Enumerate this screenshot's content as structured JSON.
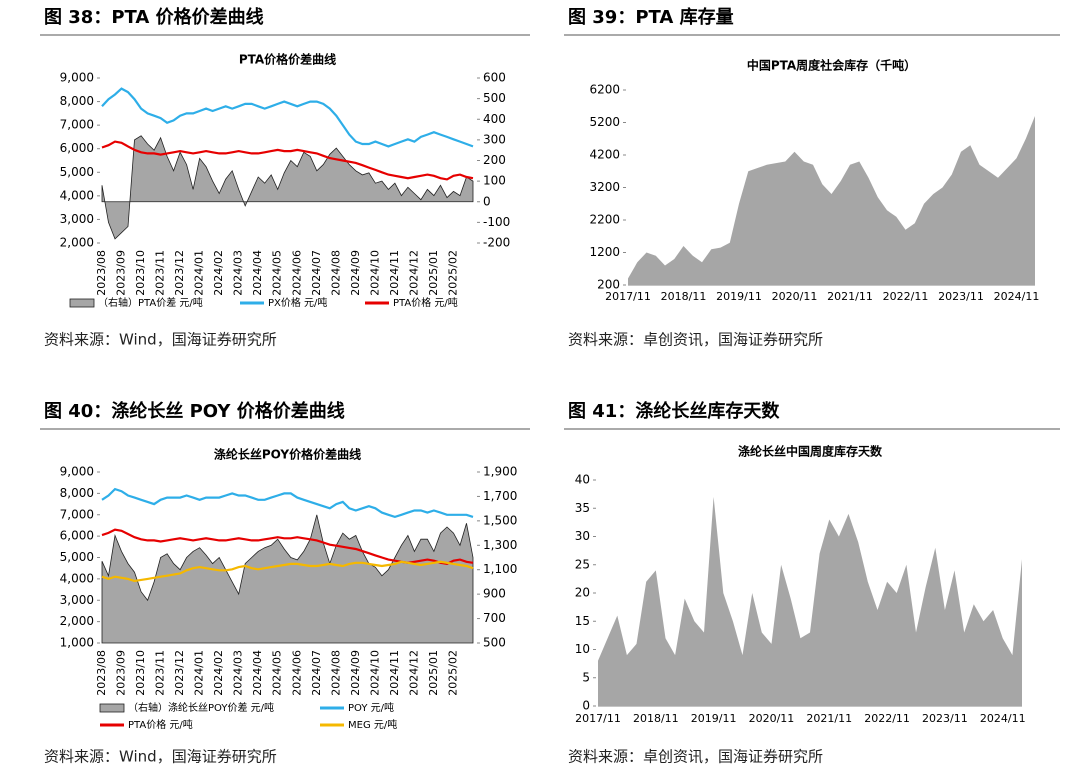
{
  "chart_data": [
    {
      "type": "combo",
      "caption": "图 38：PTA 价格价差曲线",
      "title": "PTA价格价差曲线",
      "source": "资料来源：Wind，国海证券研究所",
      "categories": [
        "2023/08",
        null,
        null,
        "2023/09",
        null,
        null,
        "2023/10",
        null,
        null,
        "2023/11",
        null,
        null,
        "2023/12",
        null,
        null,
        "2024/01",
        null,
        null,
        "2024/02",
        null,
        null,
        "2024/03",
        null,
        null,
        "2024/04",
        null,
        null,
        "2024/05",
        null,
        null,
        "2024/06",
        null,
        null,
        "2024/07",
        null,
        null,
        "2024/08",
        null,
        null,
        "2024/09",
        null,
        null,
        "2024/10",
        null,
        null,
        "2024/11",
        null,
        null,
        "2024/12",
        null,
        null,
        "2025/01",
        null,
        null,
        "2025/02",
        null,
        null,
        null
      ],
      "ylim": [
        2000,
        9000
      ],
      "yticks": [
        {
          "value": 2000,
          "label": "2,000"
        },
        {
          "value": 3000,
          "label": "3,000"
        },
        {
          "value": 4000,
          "label": "4,000"
        },
        {
          "value": 5000,
          "label": "5,000"
        },
        {
          "value": 6000,
          "label": "6,000"
        },
        {
          "value": 7000,
          "label": "7,000"
        },
        {
          "value": 8000,
          "label": "8,000"
        },
        {
          "value": 9000,
          "label": "9,000"
        }
      ],
      "y2lim": [
        -200,
        600
      ],
      "y2ticks": [
        -200,
        -100,
        0,
        100,
        200,
        300,
        400,
        500,
        600
      ],
      "series": [
        {
          "name": "（右轴）PTA价差 元/吨",
          "kind": "area",
          "axis": "y2",
          "color": "#a6a6a6",
          "values": [
            80,
            -100,
            -180,
            -150,
            -120,
            300,
            320,
            280,
            250,
            310,
            220,
            150,
            240,
            180,
            60,
            210,
            170,
            100,
            40,
            110,
            150,
            60,
            -20,
            50,
            120,
            90,
            130,
            60,
            140,
            200,
            170,
            240,
            220,
            150,
            180,
            230,
            260,
            220,
            180,
            150,
            130,
            140,
            90,
            100,
            60,
            90,
            30,
            70,
            40,
            10,
            60,
            30,
            80,
            20,
            50,
            30,
            120,
            100
          ]
        },
        {
          "name": "PX价格 元/吨",
          "kind": "line",
          "color": "#2eaee8",
          "values": [
            7800,
            8100,
            8300,
            8550,
            8400,
            8100,
            7700,
            7500,
            7400,
            7300,
            7100,
            7200,
            7400,
            7500,
            7500,
            7600,
            7700,
            7600,
            7700,
            7800,
            7700,
            7800,
            7900,
            7900,
            7800,
            7700,
            7800,
            7900,
            8000,
            7900,
            7800,
            7900,
            8000,
            8000,
            7900,
            7700,
            7400,
            7000,
            6600,
            6300,
            6200,
            6200,
            6300,
            6200,
            6100,
            6200,
            6300,
            6400,
            6300,
            6500,
            6600,
            6700,
            6600,
            6500,
            6400,
            6300,
            6200,
            6100
          ]
        },
        {
          "name": "PTA价格 元/吨",
          "kind": "line",
          "color": "#e60000",
          "values": [
            6050,
            6150,
            6300,
            6250,
            6100,
            5950,
            5850,
            5800,
            5800,
            5750,
            5800,
            5850,
            5900,
            5850,
            5800,
            5850,
            5900,
            5850,
            5800,
            5800,
            5850,
            5900,
            5850,
            5800,
            5800,
            5850,
            5900,
            5950,
            5900,
            5900,
            5950,
            5900,
            5850,
            5800,
            5700,
            5600,
            5550,
            5500,
            5450,
            5400,
            5300,
            5200,
            5100,
            5000,
            4900,
            4850,
            4800,
            4750,
            4800,
            4850,
            4900,
            4850,
            4750,
            4700,
            4850,
            4900,
            4800,
            4750
          ]
        }
      ]
    },
    {
      "type": "area",
      "caption": "图 39：PTA 库存量",
      "title": "中国PTA周度社会库存（千吨）",
      "source": "资料来源：卓创资讯，国海证券研究所",
      "categories": [
        "2017/11",
        null,
        null,
        null,
        null,
        null,
        "2018/11",
        null,
        null,
        null,
        null,
        null,
        "2019/11",
        null,
        null,
        null,
        null,
        null,
        "2020/11",
        null,
        null,
        null,
        null,
        null,
        "2021/11",
        null,
        null,
        null,
        null,
        null,
        "2022/11",
        null,
        null,
        null,
        null,
        null,
        "2023/11",
        null,
        null,
        null,
        null,
        null,
        "2024/11",
        null,
        null
      ],
      "ylim": [
        200,
        6200
      ],
      "yticks": [
        200,
        1200,
        2200,
        3200,
        4200,
        5200,
        6200
      ],
      "series": [
        {
          "kind": "area",
          "color": "#a6a6a6",
          "values": [
            400,
            900,
            1200,
            1100,
            800,
            1000,
            1400,
            1100,
            900,
            1300,
            1350,
            1500,
            2700,
            3700,
            3800,
            3900,
            3950,
            4000,
            4300,
            4000,
            3900,
            3300,
            3000,
            3400,
            3900,
            4000,
            3500,
            2900,
            2500,
            2300,
            1900,
            2100,
            2700,
            3000,
            3200,
            3600,
            4300,
            4500,
            3900,
            3700,
            3500,
            3800,
            4100,
            4700,
            5400
          ]
        }
      ]
    },
    {
      "type": "combo",
      "caption": "图 40：涤纶长丝 POY 价格价差曲线",
      "title": "涤纶长丝POY价格价差曲线",
      "source": "资料来源：Wind，国海证券研究所",
      "categories": [
        "2023/08",
        null,
        null,
        "2023/09",
        null,
        null,
        "2023/10",
        null,
        null,
        "2023/11",
        null,
        null,
        "2023/12",
        null,
        null,
        "2024/01",
        null,
        null,
        "2024/02",
        null,
        null,
        "2024/03",
        null,
        null,
        "2024/04",
        null,
        null,
        "2024/05",
        null,
        null,
        "2024/06",
        null,
        null,
        "2024/07",
        null,
        null,
        "2024/08",
        null,
        null,
        "2024/09",
        null,
        null,
        "2024/10",
        null,
        null,
        "2024/11",
        null,
        null,
        "2024/12",
        null,
        null,
        "2025/01",
        null,
        null,
        "2025/02",
        null,
        null,
        null
      ],
      "ylim": [
        1000,
        9000
      ],
      "yticks": [
        {
          "value": 1000,
          "label": "1,000"
        },
        {
          "value": 2000,
          "label": "2,000"
        },
        {
          "value": 3000,
          "label": "3,000"
        },
        {
          "value": 4000,
          "label": "4,000"
        },
        {
          "value": 5000,
          "label": "5,000"
        },
        {
          "value": 6000,
          "label": "6,000"
        },
        {
          "value": 7000,
          "label": "7,000"
        },
        {
          "value": 8000,
          "label": "8,000"
        },
        {
          "value": 9000,
          "label": "9,000"
        }
      ],
      "y2lim": [
        500,
        1900
      ],
      "y2ticks": [
        500,
        700,
        900,
        {
          "value": 1100,
          "label": "1,100"
        },
        {
          "value": 1300,
          "label": "1,300"
        },
        {
          "value": 1500,
          "label": "1,500"
        },
        {
          "value": 1700,
          "label": "1,700"
        },
        {
          "value": 1900,
          "label": "1,900"
        }
      ],
      "series": [
        {
          "name": "（右轴）涤纶长丝POY价差 元/吨",
          "kind": "area",
          "axis": "y2",
          "color": "#a6a6a6",
          "values": [
            1170,
            1050,
            1380,
            1250,
            1150,
            1080,
            920,
            850,
            1000,
            1200,
            1230,
            1150,
            1100,
            1200,
            1250,
            1280,
            1220,
            1150,
            1200,
            1100,
            1000,
            900,
            1150,
            1200,
            1250,
            1280,
            1300,
            1350,
            1270,
            1200,
            1180,
            1250,
            1350,
            1550,
            1320,
            1150,
            1300,
            1400,
            1350,
            1380,
            1250,
            1150,
            1120,
            1050,
            1100,
            1200,
            1300,
            1380,
            1250,
            1350,
            1350,
            1250,
            1400,
            1450,
            1400,
            1300,
            1480,
            1200
          ]
        },
        {
          "name": "POY 元/吨",
          "kind": "line",
          "color": "#2eaee8",
          "values": [
            7700,
            7900,
            8200,
            8100,
            7900,
            7800,
            7700,
            7600,
            7500,
            7700,
            7800,
            7800,
            7800,
            7900,
            7800,
            7700,
            7800,
            7800,
            7800,
            7900,
            8000,
            7900,
            7900,
            7800,
            7700,
            7700,
            7800,
            7900,
            8000,
            8000,
            7800,
            7700,
            7600,
            7500,
            7400,
            7300,
            7500,
            7600,
            7300,
            7200,
            7300,
            7400,
            7300,
            7100,
            7000,
            6900,
            7000,
            7100,
            7200,
            7200,
            7100,
            7200,
            7100,
            7000,
            7000,
            7000,
            7000,
            6900
          ]
        },
        {
          "name": "PTA价格 元/吨",
          "kind": "line",
          "color": "#e60000",
          "values": [
            6050,
            6150,
            6300,
            6250,
            6100,
            5950,
            5850,
            5800,
            5800,
            5750,
            5800,
            5850,
            5900,
            5850,
            5800,
            5850,
            5900,
            5850,
            5800,
            5800,
            5850,
            5900,
            5850,
            5800,
            5800,
            5850,
            5900,
            5950,
            5900,
            5900,
            5950,
            5900,
            5850,
            5800,
            5700,
            5600,
            5550,
            5500,
            5450,
            5400,
            5300,
            5200,
            5100,
            5000,
            4900,
            4850,
            4800,
            4750,
            4800,
            4850,
            4900,
            4850,
            4750,
            4700,
            4850,
            4900,
            4800,
            4750
          ]
        },
        {
          "name": "MEG 元/吨",
          "kind": "line",
          "color": "#f5b800",
          "values": [
            4100,
            4000,
            4100,
            4050,
            4000,
            3900,
            3950,
            4000,
            4050,
            4100,
            4150,
            4200,
            4250,
            4400,
            4500,
            4550,
            4500,
            4450,
            4400,
            4400,
            4450,
            4550,
            4600,
            4500,
            4450,
            4500,
            4550,
            4600,
            4650,
            4700,
            4700,
            4650,
            4600,
            4600,
            4650,
            4700,
            4650,
            4600,
            4700,
            4750,
            4750,
            4700,
            4650,
            4600,
            4650,
            4700,
            4800,
            4750,
            4700,
            4650,
            4700,
            4750,
            4800,
            4750,
            4700,
            4650,
            4600,
            4500
          ]
        }
      ]
    },
    {
      "type": "area",
      "caption": "图 41：涤纶长丝库存天数",
      "title": "涤纶长丝中国周度库存天数",
      "source": "资料来源：卓创资讯，国海证券研究所",
      "categories": [
        "2017/11",
        null,
        null,
        null,
        null,
        null,
        "2018/11",
        null,
        null,
        null,
        null,
        null,
        "2019/11",
        null,
        null,
        null,
        null,
        null,
        "2020/11",
        null,
        null,
        null,
        null,
        null,
        "2021/11",
        null,
        null,
        null,
        null,
        null,
        "2022/11",
        null,
        null,
        null,
        null,
        null,
        "2023/11",
        null,
        null,
        null,
        null,
        null,
        "2024/11",
        null,
        null
      ],
      "ylim": [
        0,
        40
      ],
      "yticks": [
        0,
        5,
        10,
        15,
        20,
        25,
        30,
        35,
        40
      ],
      "series": [
        {
          "kind": "area",
          "color": "#a6a6a6",
          "values": [
            8,
            12,
            16,
            9,
            11,
            22,
            24,
            12,
            9,
            19,
            15,
            13,
            37,
            20,
            15,
            9,
            20,
            13,
            11,
            25,
            19,
            12,
            13,
            27,
            33,
            30,
            34,
            29,
            22,
            17,
            22,
            20,
            25,
            13,
            21,
            28,
            17,
            24,
            13,
            18,
            15,
            17,
            12,
            9,
            26
          ]
        }
      ]
    }
  ]
}
